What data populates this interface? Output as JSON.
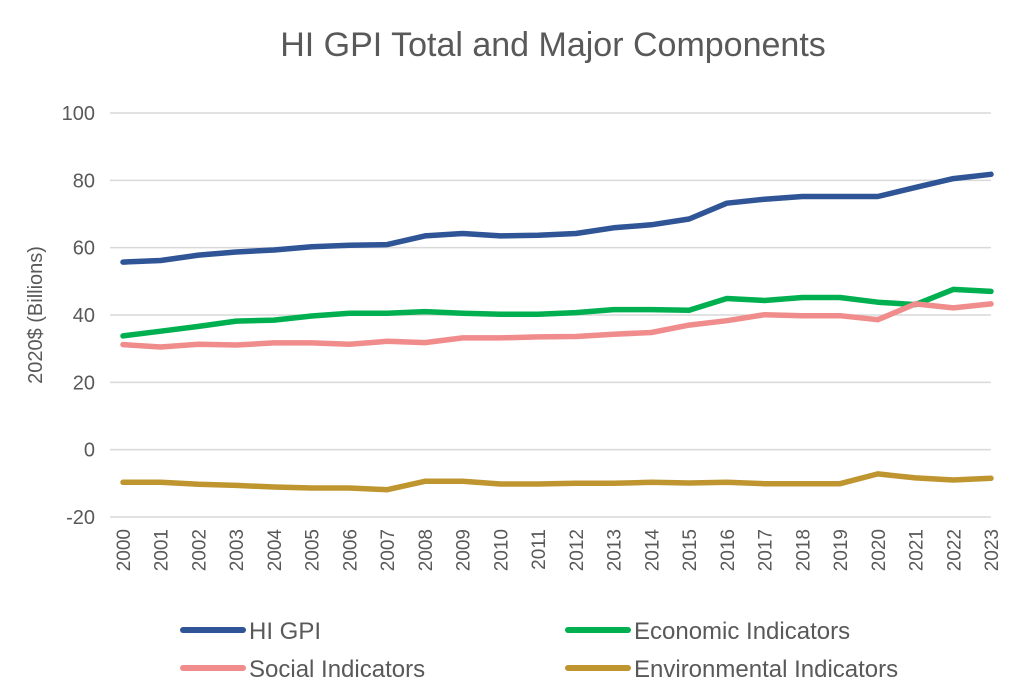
{
  "chart_data": {
    "type": "line",
    "title": "HI GPI Total and Major Components",
    "xlabel": "",
    "ylabel": "2020$ (Billions)",
    "ylim": [
      -20,
      100
    ],
    "yticks": [
      "-20",
      "0",
      "20",
      "40",
      "60",
      "80",
      "100"
    ],
    "grid": true,
    "legend_position": "bottom",
    "x": [
      "2000",
      "2001",
      "2002",
      "2003",
      "2004",
      "2005",
      "2006",
      "2007",
      "2008",
      "2009",
      "2010",
      "2011",
      "2012",
      "2013",
      "2014",
      "2015",
      "2016",
      "2017",
      "2018",
      "2019",
      "2020",
      "2021",
      "2022",
      "2023"
    ],
    "series": [
      {
        "name": "HI GPI",
        "color": "#2F5597",
        "values": [
          55.7,
          56.2,
          57.8,
          58.7,
          59.3,
          60.3,
          60.7,
          60.9,
          63.5,
          64.2,
          63.5,
          63.7,
          64.2,
          65.9,
          66.8,
          68.5,
          73.2,
          74.4,
          75.2,
          75.2,
          75.2,
          77.9,
          80.5,
          81.8
        ]
      },
      {
        "name": "Economic Indicators",
        "color": "#00B050",
        "values": [
          33.8,
          35.2,
          36.6,
          38.2,
          38.5,
          39.7,
          40.5,
          40.5,
          41.0,
          40.5,
          40.2,
          40.2,
          40.7,
          41.6,
          41.6,
          41.4,
          44.9,
          44.3,
          45.2,
          45.2,
          43.8,
          43.1,
          47.6,
          47.0
        ]
      },
      {
        "name": "Social Indicators",
        "color": "#F08C8C",
        "values": [
          31.2,
          30.5,
          31.3,
          31.1,
          31.7,
          31.7,
          31.3,
          32.2,
          31.8,
          33.2,
          33.2,
          33.5,
          33.6,
          34.3,
          34.8,
          37.0,
          38.3,
          40.1,
          39.8,
          39.8,
          38.6,
          43.3,
          42.1,
          43.3
        ]
      },
      {
        "name": "Environmental Indicators",
        "color": "#BF9530",
        "values": [
          -9.7,
          -9.7,
          -10.3,
          -10.6,
          -11.1,
          -11.4,
          -11.4,
          -11.9,
          -9.4,
          -9.4,
          -10.2,
          -10.2,
          -10.0,
          -10.0,
          -9.7,
          -9.9,
          -9.7,
          -10.1,
          -10.1,
          -10.1,
          -7.2,
          -8.4,
          -9.0,
          -8.5
        ]
      }
    ]
  }
}
